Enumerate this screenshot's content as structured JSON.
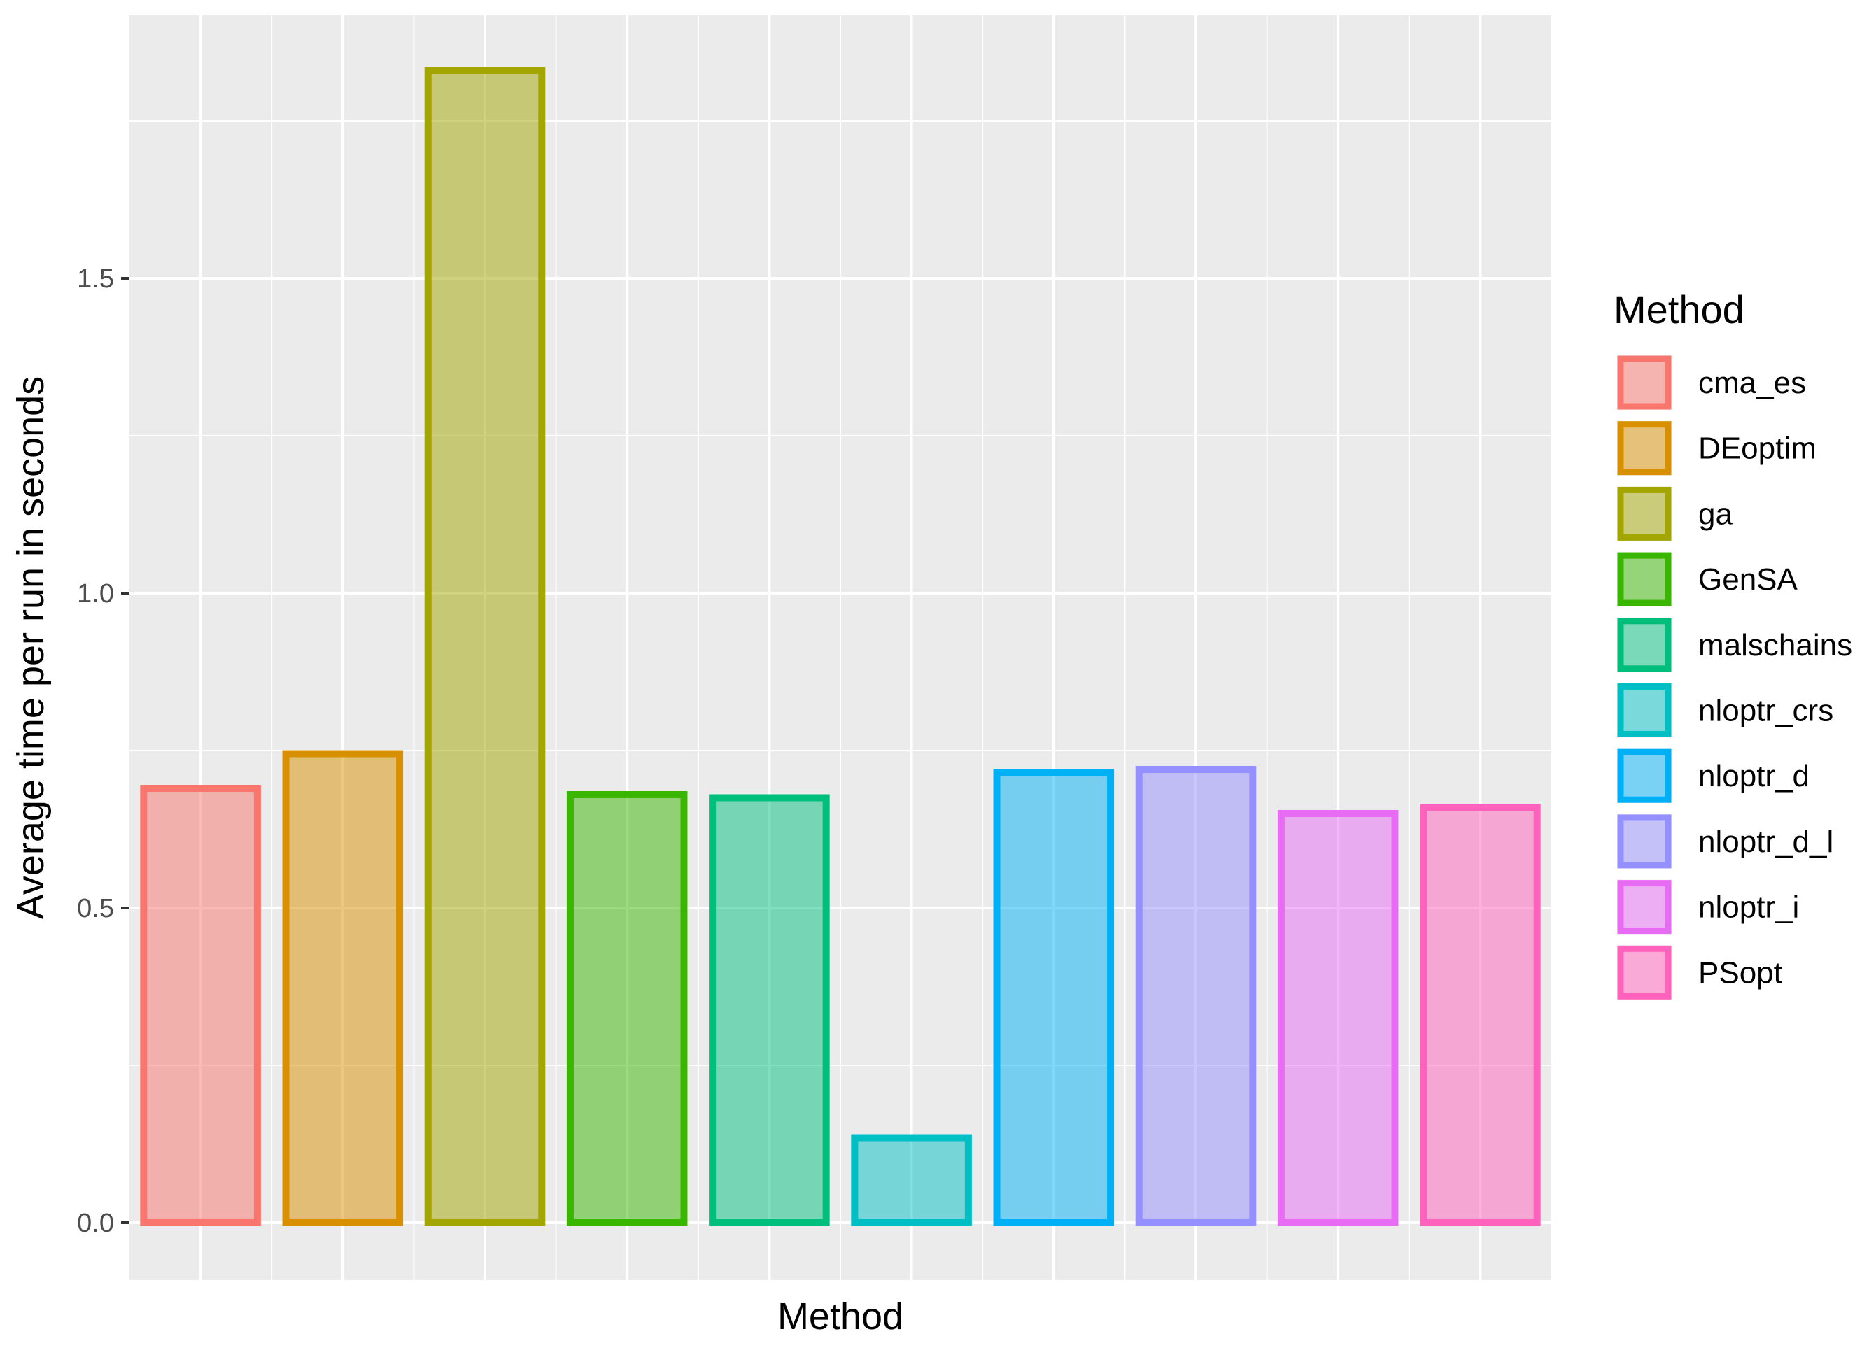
{
  "chart_data": {
    "type": "bar",
    "xlabel": "Method",
    "ylabel": "Average time per run in seconds",
    "ylim": [
      -0.1,
      1.92
    ],
    "yticks": [
      0.0,
      0.5,
      1.0,
      1.5
    ],
    "ytick_labels": [
      "0.0",
      "0.5",
      "1.0",
      "1.5"
    ],
    "grid": true,
    "legend": {
      "title": "Method",
      "position": "right"
    },
    "categories": [
      "cma_es",
      "DEoptim",
      "ga",
      "GenSA",
      "malschains",
      "nloptr_crs",
      "nloptr_d",
      "nloptr_d_l",
      "nloptr_i",
      "PSopt"
    ],
    "values": [
      0.69,
      0.745,
      1.83,
      0.68,
      0.675,
      0.135,
      0.715,
      0.72,
      0.65,
      0.66
    ],
    "colors": [
      "#F8766D",
      "#D89000",
      "#A3A500",
      "#39B600",
      "#00BF7D",
      "#00BFC4",
      "#00B0F6",
      "#9590FF",
      "#E76BF3",
      "#FF62BC"
    ]
  }
}
